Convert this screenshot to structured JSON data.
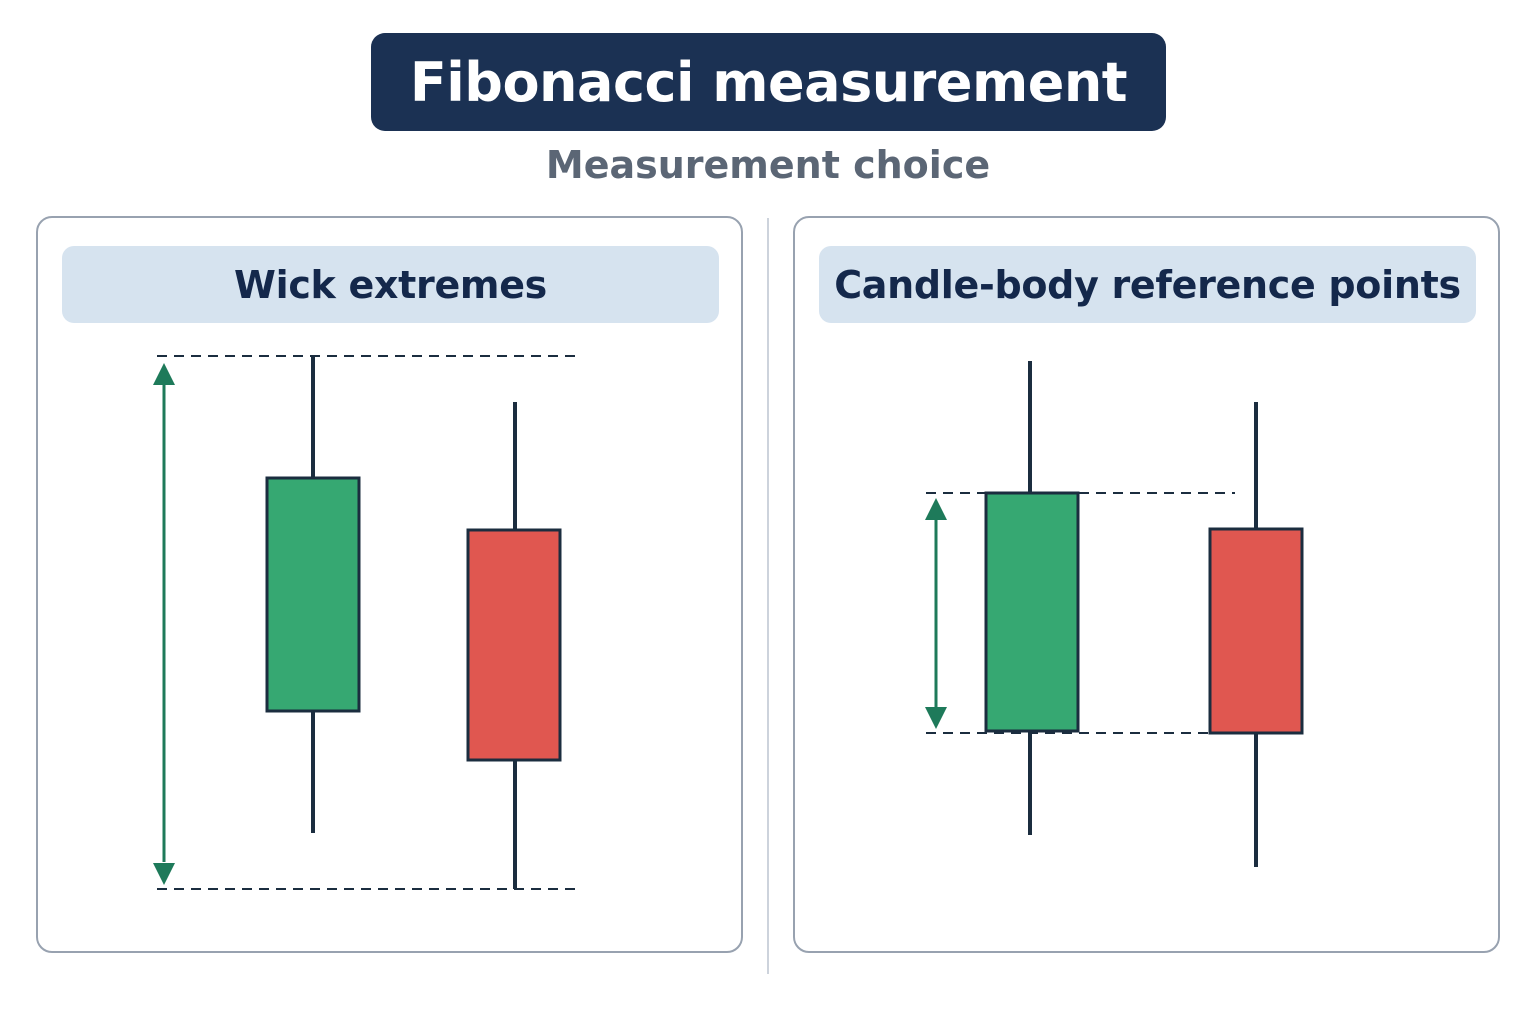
{
  "title": "Fibonacci measurement",
  "subtitle": "Measurement choice",
  "colors": {
    "title_background": "#1b3153",
    "header_background": "#d6e3ef",
    "bullish_candle": "#36a872",
    "bearish_candle": "#e05750",
    "outline": "#1b2d3f",
    "measurement_arrow": "#1e7a5a",
    "reference_line": "#1b2d3f"
  },
  "panels": [
    {
      "header": "Wick extremes",
      "measurement": "full range from highest wick to lowest wick",
      "candles": [
        {
          "direction": "bullish",
          "color": "green"
        },
        {
          "direction": "bearish",
          "color": "red"
        }
      ]
    },
    {
      "header": "Candle-body reference points",
      "measurement": "range from body top to body bottom",
      "candles": [
        {
          "direction": "bullish",
          "color": "green"
        },
        {
          "direction": "bearish",
          "color": "red"
        }
      ]
    }
  ],
  "icons": {
    "measurement_arrow": "double-headed-arrow-icon",
    "reference_line": "dashed-line"
  }
}
